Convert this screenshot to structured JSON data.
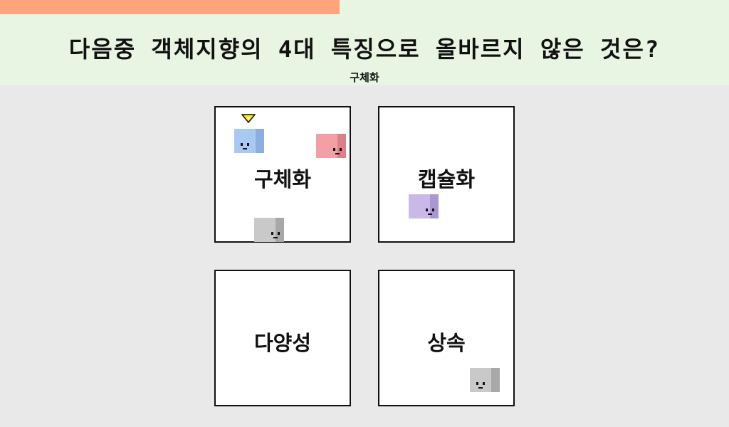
{
  "timer": {
    "remaining_fraction": 0.466,
    "color": "#ffa47c"
  },
  "header": {
    "question": "다음중 객체지향의 4대 특징으로 올바르지 않은 것은?",
    "selected_answer": "구체화"
  },
  "options": [
    {
      "label": "구체화"
    },
    {
      "label": "캡슐화"
    },
    {
      "label": "다양성"
    },
    {
      "label": "상속"
    }
  ],
  "players": [
    {
      "name": "blue-cube",
      "color": "#a9c8f2",
      "side": "#8bb0e0"
    },
    {
      "name": "red-cube",
      "color": "#f2a0a6",
      "side": "#d98088"
    },
    {
      "name": "gray-cube",
      "color": "#c9c9c9",
      "side": "#a8a8a8"
    },
    {
      "name": "purple-cube",
      "color": "#c9b8e8",
      "side": "#ab97d0"
    }
  ],
  "colors": {
    "header_bg": "#e8f5e3",
    "play_bg": "#e9e9e9",
    "marker": "#ffe600"
  },
  "icons": {
    "marker": "triangle-down-icon"
  }
}
